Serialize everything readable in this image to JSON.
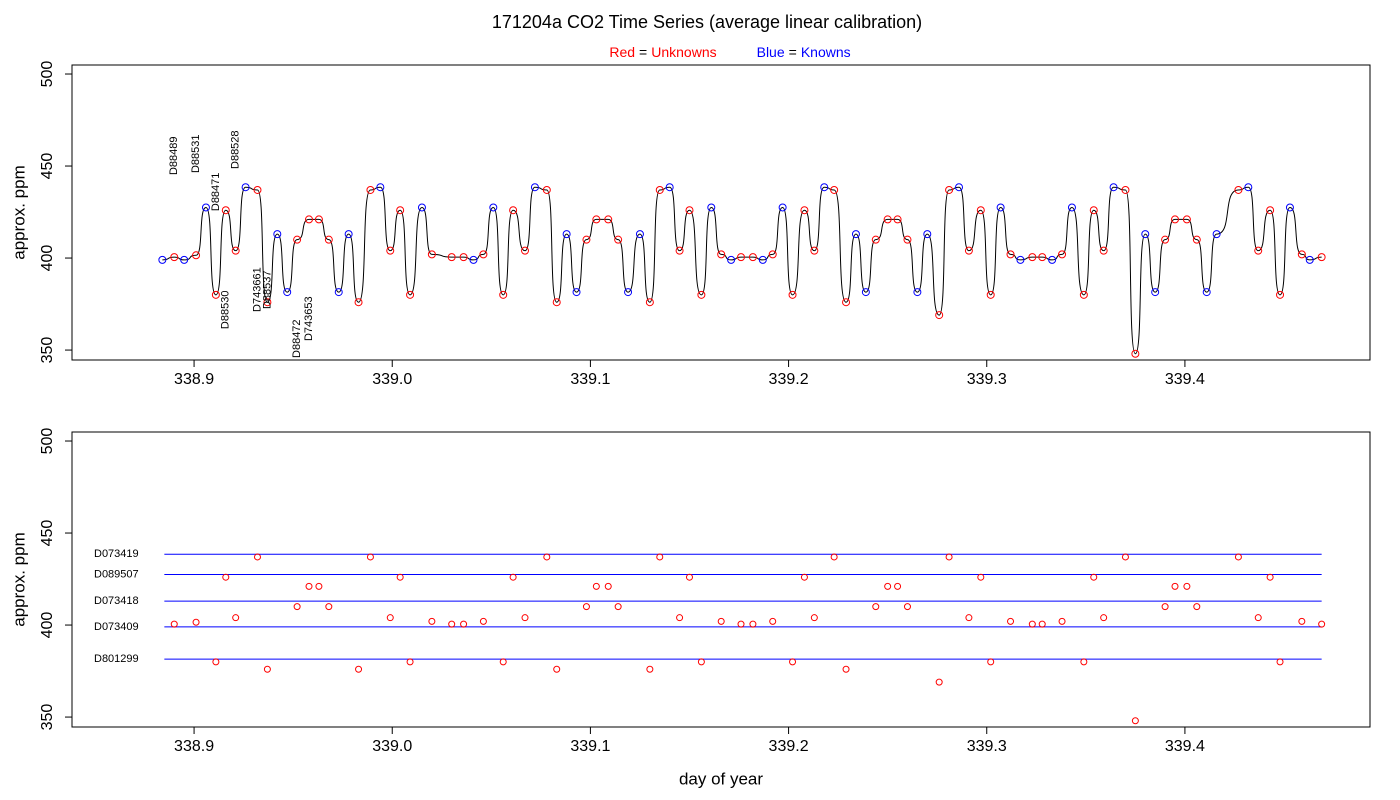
{
  "chart_data": [
    {
      "type": "line",
      "title": "171204a   CO2 Time Series (average linear calibration)",
      "legend": [
        {
          "word": "Red",
          "sep": "=",
          "label": "Unknowns",
          "color": "#ff0000"
        },
        {
          "word": "Blue",
          "sep": "=",
          "label": "Knowns",
          "color": "#0000ff"
        }
      ],
      "ylabel": "approx. ppm",
      "line_color": "#000000",
      "xlim": [
        338.8384,
        339.4934
      ],
      "ylim": [
        344.6,
        504.9
      ],
      "xticks": [
        338.9,
        {
          "value": 339.0,
          "label": "339.0"
        },
        339.1,
        339.2,
        339.3,
        339.4
      ],
      "yticks": [
        350,
        400,
        450,
        500
      ],
      "x": [
        338.884,
        338.89,
        338.895,
        338.901,
        338.906,
        338.911,
        338.916,
        338.921,
        338.926,
        338.932,
        338.937,
        338.942,
        338.947,
        338.952,
        338.958,
        338.963,
        338.968,
        338.973,
        338.978,
        338.983,
        338.989,
        338.994,
        338.999,
        339.004,
        339.009,
        339.015,
        339.02,
        339.03,
        339.036,
        339.041,
        339.046,
        339.051,
        339.056,
        339.061,
        339.067,
        339.072,
        339.078,
        339.083,
        339.088,
        339.093,
        339.098,
        339.103,
        339.109,
        339.114,
        339.119,
        339.125,
        339.13,
        339.135,
        339.14,
        339.145,
        339.15,
        339.156,
        339.161,
        339.166,
        339.171,
        339.176,
        339.182,
        339.187,
        339.192,
        339.197,
        339.202,
        339.208,
        339.213,
        339.218,
        339.223,
        339.229,
        339.234,
        339.239,
        339.244,
        339.25,
        339.255,
        339.26,
        339.265,
        339.27,
        339.276,
        339.281,
        339.286,
        339.291,
        339.297,
        339.302,
        339.307,
        339.312,
        339.317,
        339.323,
        339.328,
        339.333,
        339.338,
        339.343,
        339.349,
        339.354,
        339.359,
        339.364,
        339.37,
        339.375,
        339.38,
        339.385,
        339.39,
        339.395,
        339.401,
        339.406,
        339.411,
        339.416,
        339.427,
        339.432,
        339.437,
        339.443,
        339.448,
        339.453,
        339.459,
        339.463,
        339.469
      ],
      "values": [
        399,
        400.5,
        399,
        401.5,
        427.5,
        380,
        426,
        404,
        438.5,
        437,
        376,
        413,
        381.5,
        410,
        421,
        421,
        410,
        381.5,
        413,
        376,
        437,
        438.5,
        404,
        426,
        380,
        427.5,
        402,
        400.5,
        400.5,
        399,
        402,
        427.5,
        380,
        426,
        404,
        438.5,
        437,
        376,
        413,
        381.5,
        410,
        421,
        421,
        410,
        381.5,
        413,
        376,
        437,
        438.5,
        404,
        426,
        380,
        427.5,
        402,
        399,
        400.5,
        400.5,
        399,
        402,
        427.5,
        380,
        426,
        404,
        438.5,
        437,
        376,
        413,
        381.5,
        410,
        421,
        421,
        410,
        381.5,
        413,
        369,
        437,
        438.5,
        404,
        426,
        380,
        427.5,
        402,
        399,
        400.5,
        400.5,
        399,
        402,
        427.5,
        380,
        426,
        404,
        438.5,
        437,
        348,
        413,
        381.5,
        410,
        421,
        421,
        410,
        381.5,
        413,
        437,
        438.5,
        404,
        426,
        380,
        427.5,
        402,
        399,
        400.5
      ],
      "colors": [
        "blue",
        "red",
        "blue",
        "red",
        "blue",
        "red",
        "red",
        "red",
        "blue",
        "red",
        "red",
        "blue",
        "blue",
        "red",
        "red",
        "red",
        "red",
        "blue",
        "blue",
        "red",
        "red",
        "blue",
        "red",
        "red",
        "red",
        "blue",
        "red",
        "red",
        "red",
        "blue",
        "red",
        "blue",
        "red",
        "red",
        "red",
        "blue",
        "red",
        "red",
        "blue",
        "blue",
        "red",
        "red",
        "red",
        "red",
        "blue",
        "blue",
        "red",
        "red",
        "blue",
        "red",
        "red",
        "red",
        "blue",
        "red",
        "blue",
        "red",
        "red",
        "blue",
        "red",
        "blue",
        "red",
        "red",
        "red",
        "blue",
        "red",
        "red",
        "blue",
        "blue",
        "red",
        "red",
        "red",
        "red",
        "blue",
        "blue",
        "red",
        "red",
        "blue",
        "red",
        "red",
        "red",
        "blue",
        "red",
        "blue",
        "red",
        "red",
        "blue",
        "red",
        "blue",
        "red",
        "red",
        "red",
        "blue",
        "red",
        "red",
        "blue",
        "blue",
        "red",
        "red",
        "red",
        "red",
        "blue",
        "blue",
        "red",
        "blue",
        "red",
        "red",
        "red",
        "blue",
        "red",
        "blue",
        "red"
      ],
      "annotations": [
        {
          "text": "D88489",
          "x": 338.89,
          "y": 445.1
        },
        {
          "text": "D88531",
          "x": 338.901,
          "y": 446.2
        },
        {
          "text": "D88471",
          "x": 338.911,
          "y": 425.5
        },
        {
          "text": "D88528",
          "x": 338.921,
          "y": 448.4
        },
        {
          "text": "D88530",
          "x": 338.916,
          "y": 361.4
        },
        {
          "text": "D743661",
          "x": 338.932,
          "y": 370.7
        },
        {
          "text": "D88537",
          "x": 338.937,
          "y": 372.3
        },
        {
          "text": "D88472",
          "x": 338.952,
          "y": 345.7
        },
        {
          "text": "D743653",
          "x": 338.958,
          "y": 354.9
        }
      ],
      "annotation_color": "#ff0000"
    },
    {
      "type": "scatter",
      "ylabel": "approx. ppm",
      "xlabel": "day of year",
      "color": "#ff0000",
      "line_color": "#0000ff",
      "xlim": [
        338.8384,
        339.4934
      ],
      "ylim": [
        344.6,
        504.9
      ],
      "xticks": [
        338.9,
        {
          "value": 339.0,
          "label": "339.0"
        },
        339.1,
        339.2,
        339.3,
        339.4
      ],
      "yticks": [
        350,
        400,
        450,
        500
      ],
      "reference_lines": [
        {
          "name": "D073419",
          "value": 438.5,
          "x": [
            338.885,
            339.469
          ]
        },
        {
          "name": "D089507",
          "value": 427.5,
          "x": [
            338.885,
            339.469
          ]
        },
        {
          "name": "D073418",
          "value": 413,
          "x": [
            338.885,
            339.469
          ]
        },
        {
          "name": "D073409",
          "value": 399,
          "x": [
            338.885,
            339.469
          ]
        },
        {
          "name": "D801299",
          "value": 381.5,
          "x": [
            338.885,
            339.469
          ]
        }
      ],
      "x": [
        338.89,
        338.901,
        338.911,
        338.916,
        338.921,
        338.932,
        338.937,
        338.952,
        338.958,
        338.963,
        338.968,
        338.983,
        338.989,
        338.999,
        339.004,
        339.009,
        339.02,
        339.03,
        339.036,
        339.046,
        339.056,
        339.061,
        339.067,
        339.078,
        339.083,
        339.098,
        339.103,
        339.109,
        339.114,
        339.13,
        339.135,
        339.145,
        339.15,
        339.156,
        339.166,
        339.176,
        339.182,
        339.192,
        339.202,
        339.208,
        339.213,
        339.223,
        339.229,
        339.244,
        339.25,
        339.255,
        339.26,
        339.276,
        339.281,
        339.291,
        339.297,
        339.302,
        339.312,
        339.323,
        339.328,
        339.338,
        339.349,
        339.354,
        339.359,
        339.37,
        339.375,
        339.39,
        339.395,
        339.401,
        339.406,
        339.427,
        339.437,
        339.443,
        339.448,
        339.459,
        339.469
      ],
      "values": [
        400.5,
        401.5,
        380,
        426,
        404,
        437,
        376,
        410,
        421,
        421,
        410,
        376,
        437,
        404,
        426,
        380,
        402,
        400.5,
        400.5,
        402,
        380,
        426,
        404,
        437,
        376,
        410,
        421,
        421,
        410,
        376,
        437,
        404,
        426,
        380,
        402,
        400.5,
        400.5,
        402,
        380,
        426,
        404,
        437,
        376,
        410,
        421,
        421,
        410,
        369,
        437,
        404,
        426,
        380,
        402,
        400.5,
        400.5,
        402,
        380,
        426,
        404,
        437,
        348,
        410,
        421,
        421,
        410,
        437,
        404,
        426,
        380,
        402,
        400.5
      ]
    }
  ]
}
